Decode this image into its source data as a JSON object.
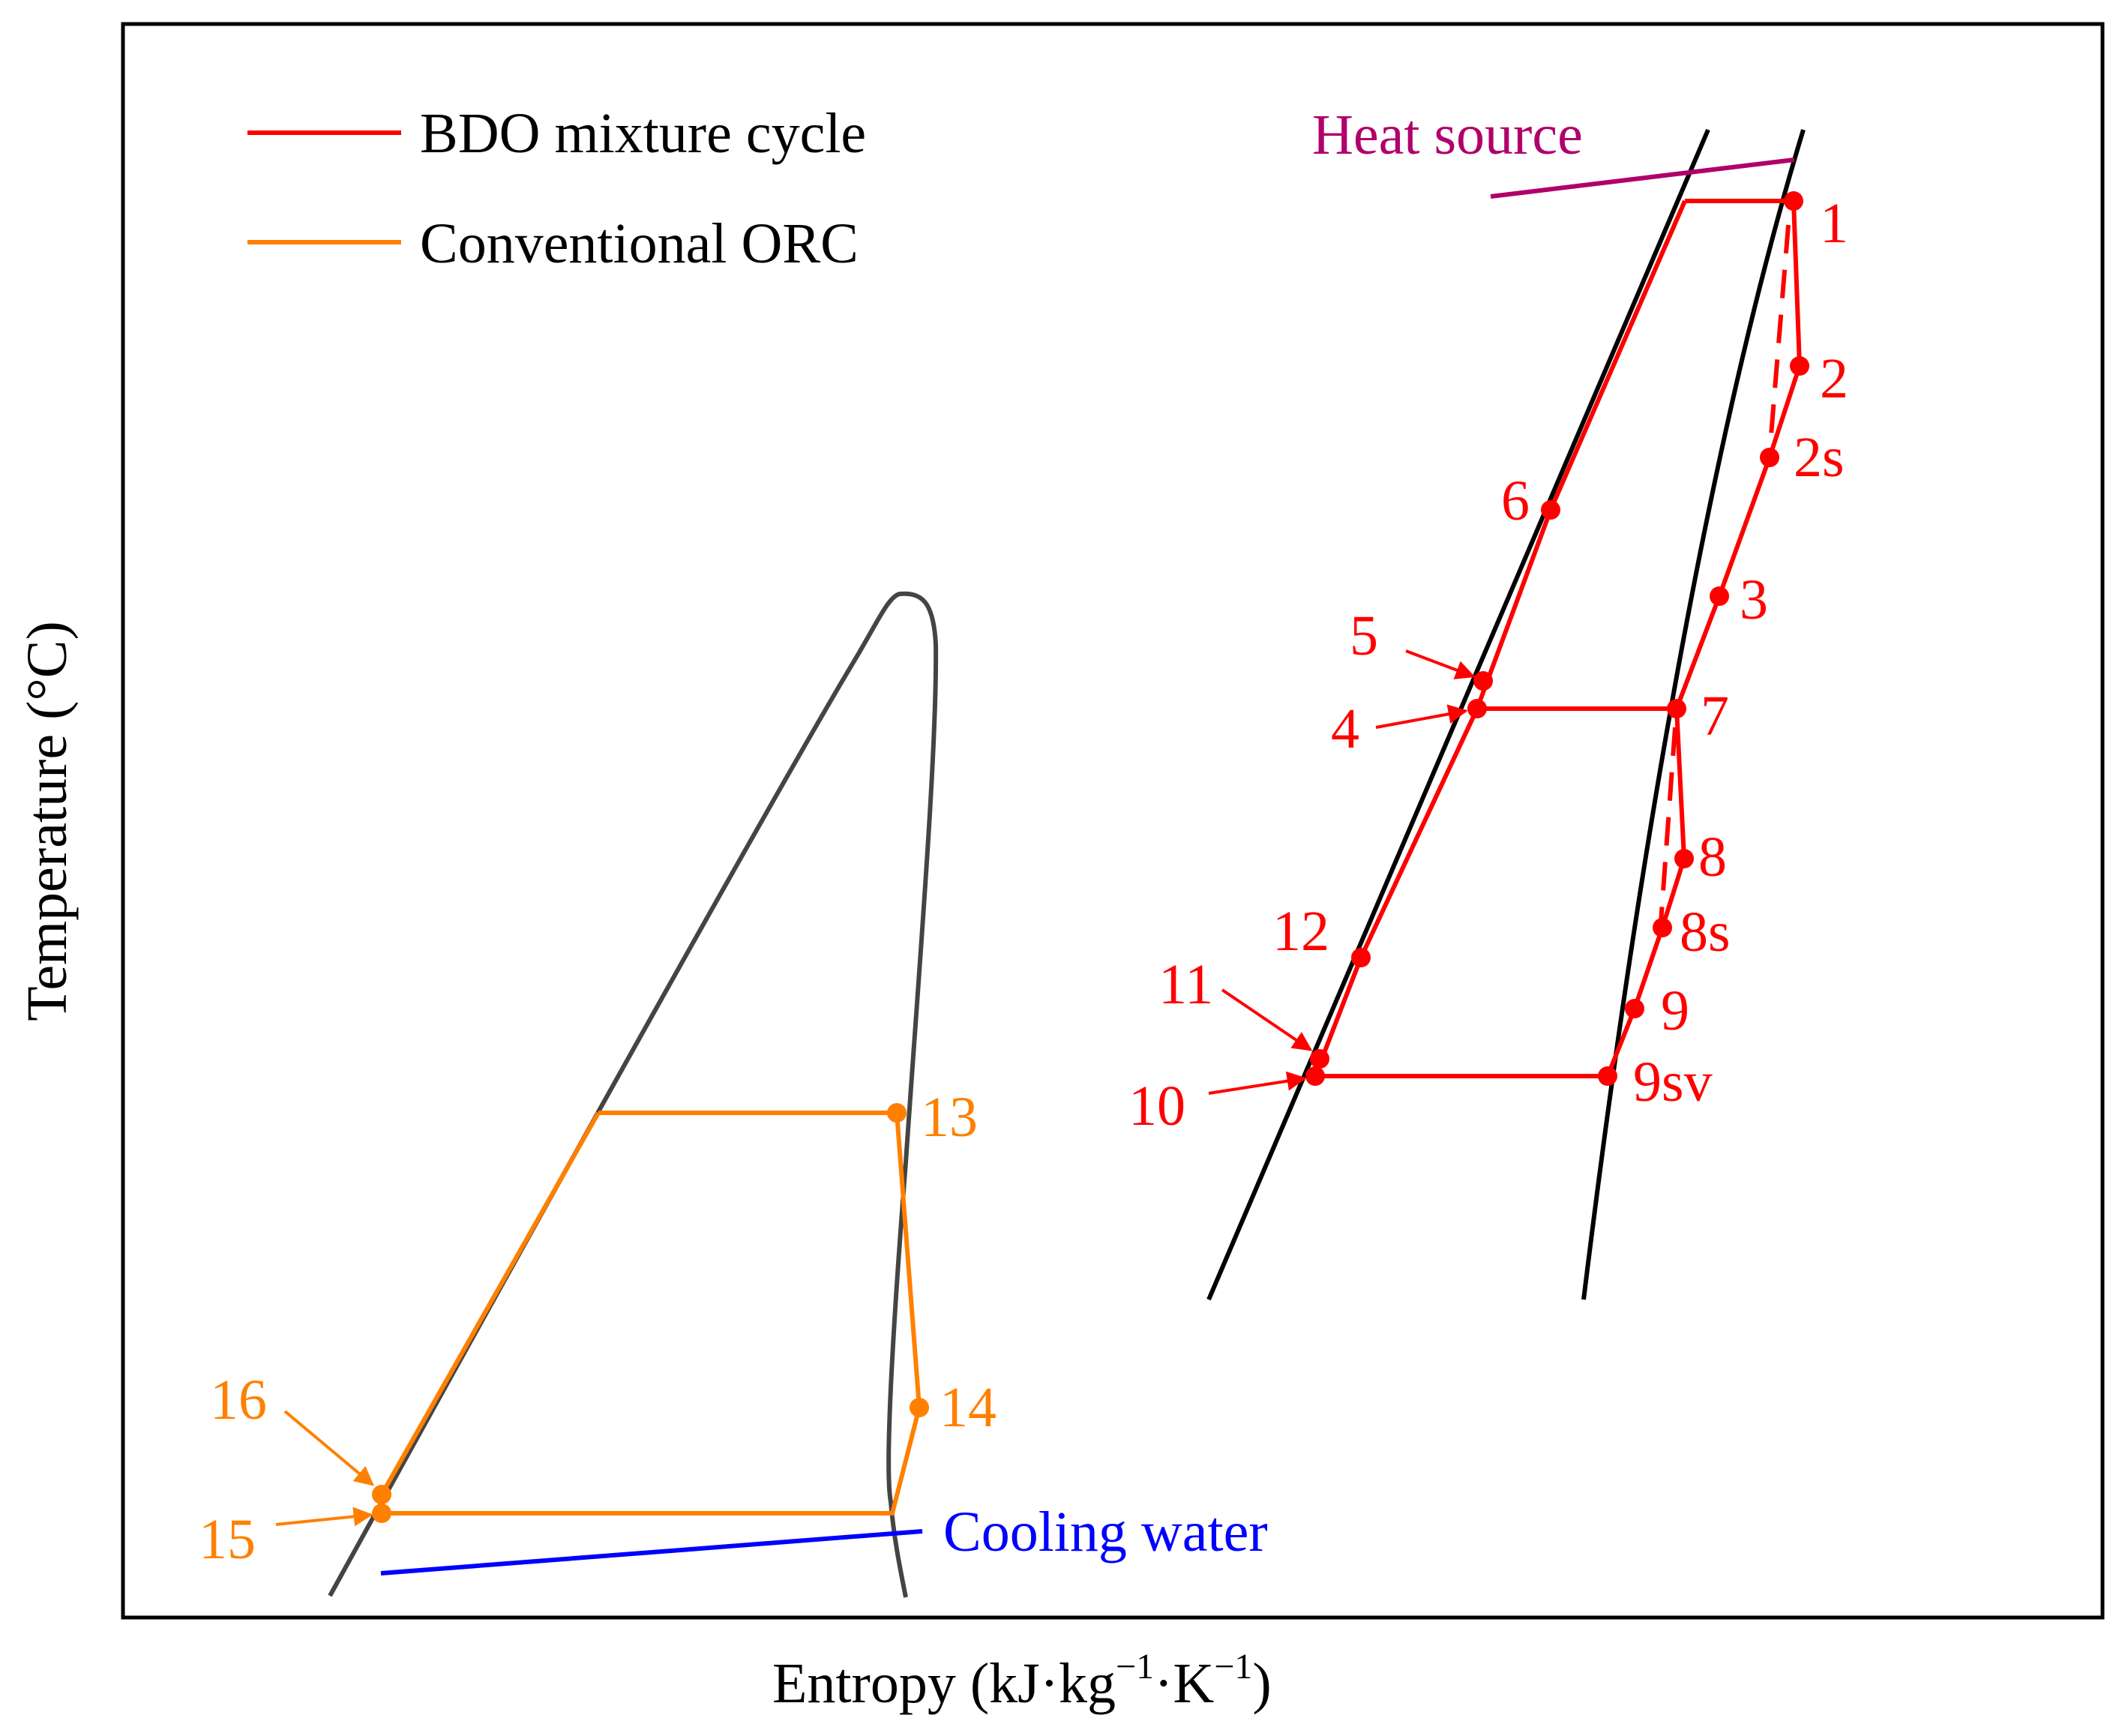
{
  "axes": {
    "xlabel_main": "Entropy  (kJ·kg",
    "xlabel_exp1": "−1",
    "xlabel_mid": "·K",
    "xlabel_exp2": "−1",
    "xlabel_close": ")",
    "ylabel": "Temperature  (°C)"
  },
  "legend": [
    {
      "label": "BDO mixture cycle",
      "color": "#ff0000"
    },
    {
      "label": "Conventional ORC",
      "color": "#ff8000"
    }
  ],
  "annotations": {
    "heat_source": "Heat source",
    "cooling_water": "Cooling water"
  },
  "colors": {
    "bdo": "#ff0000",
    "orc": "#ff8000",
    "heat_source": "#b0006a",
    "cooling_water": "#0000ff",
    "dome": "#444444",
    "saturation": "#000000"
  },
  "bdo_points": [
    "1",
    "2",
    "2s",
    "3",
    "4",
    "5",
    "6",
    "7",
    "8",
    "8s",
    "9",
    "9sv",
    "10",
    "11",
    "12"
  ],
  "orc_points": [
    "13",
    "14",
    "15",
    "16"
  ]
}
